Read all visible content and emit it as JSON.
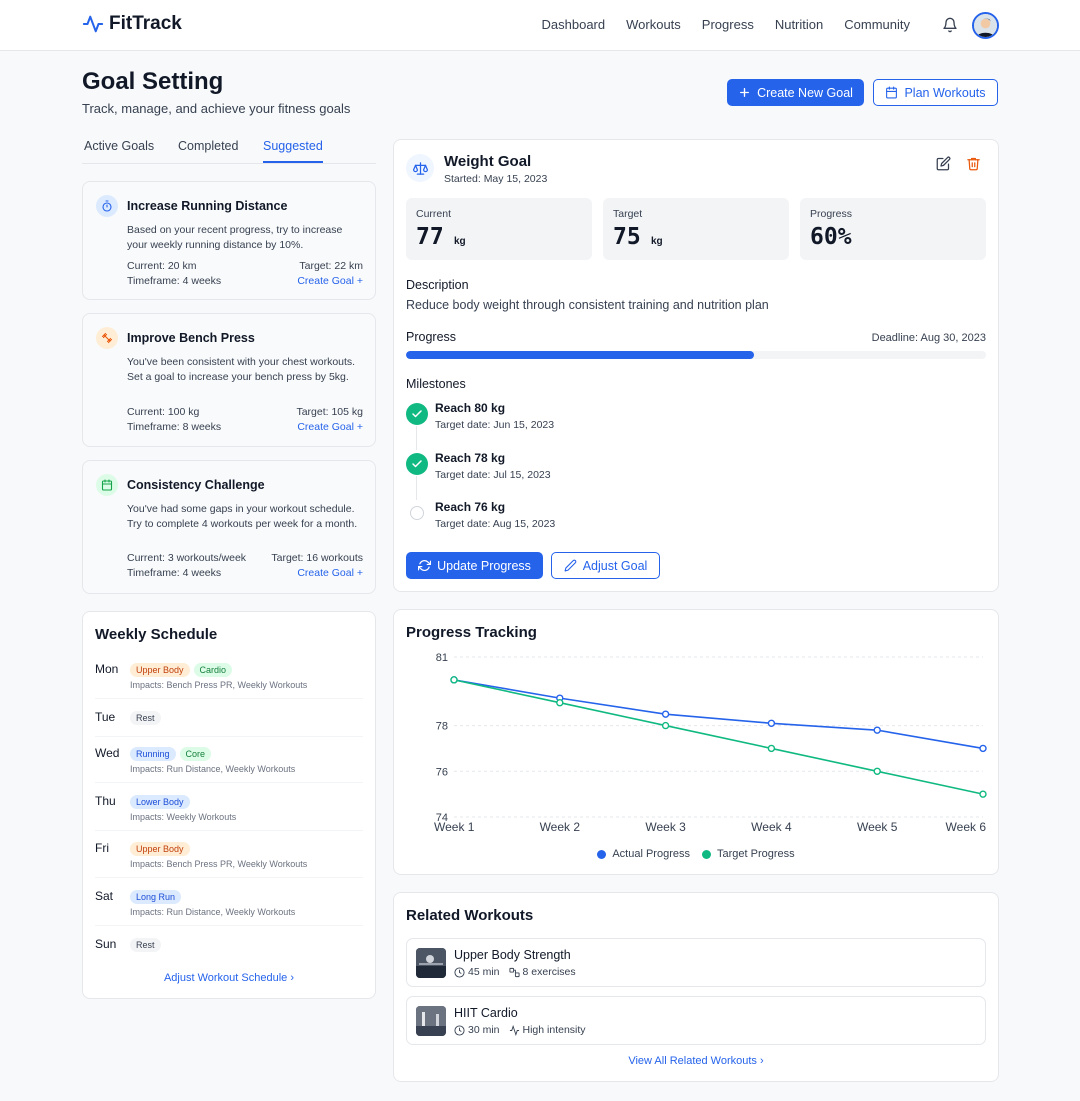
{
  "app": {
    "brand": "FitTrack",
    "nav": [
      "Dashboard",
      "Workouts",
      "Progress",
      "Nutrition",
      "Community"
    ],
    "accent": "#2563eb"
  },
  "header": {
    "title": "Goal Setting",
    "subtitle": "Track, manage, and achieve your fitness goals",
    "create_label": "Create New Goal",
    "plan_label": "Plan Workouts"
  },
  "tabs": [
    {
      "label": "Active Goals",
      "active": false
    },
    {
      "label": "Completed",
      "active": false
    },
    {
      "label": "Suggested",
      "active": true
    }
  ],
  "suggestions": [
    {
      "icon": "stopwatch-icon",
      "title": "Increase Running Distance",
      "description": "Based on your recent progress, try to increase your weekly running distance by 10%.",
      "current": "Current: 20 km",
      "target": "Target: 22 km",
      "timeframe": "Timeframe: 4 weeks",
      "link": "Create Goal"
    },
    {
      "icon": "dumbbell-icon",
      "title": "Improve Bench Press",
      "description": "You've been consistent with your chest workouts. Set a goal to increase your bench press by 5kg.",
      "current": "Current: 100 kg",
      "target": "Target: 105 kg",
      "timeframe": "Timeframe: 8 weeks",
      "link": "Create Goal"
    },
    {
      "icon": "calendar-icon",
      "title": "Consistency Challenge",
      "description": "You've had some gaps in your workout schedule. Try to complete 4 workouts per week for a month.",
      "current": "Current: 3 workouts/week",
      "target": "Target: 16 workouts",
      "timeframe": "Timeframe: 4 weeks",
      "link": "Create Goal"
    }
  ],
  "schedule": {
    "title": "Weekly Schedule",
    "days": [
      {
        "day": "Mon",
        "tags": [
          {
            "t": "Upper Body",
            "c": "orange"
          },
          {
            "t": "Cardio",
            "c": "green"
          }
        ],
        "impact": "Impacts: Bench Press PR, Weekly Workouts"
      },
      {
        "day": "Tue",
        "tags": [
          {
            "t": "Rest",
            "c": "gray"
          }
        ],
        "impact": ""
      },
      {
        "day": "Wed",
        "tags": [
          {
            "t": "Running",
            "c": "blue"
          },
          {
            "t": "Core",
            "c": "green"
          }
        ],
        "impact": "Impacts: Run Distance, Weekly Workouts"
      },
      {
        "day": "Thu",
        "tags": [
          {
            "t": "Lower Body",
            "c": "blue"
          }
        ],
        "impact": "Impacts: Weekly Workouts"
      },
      {
        "day": "Fri",
        "tags": [
          {
            "t": "Upper Body",
            "c": "orange"
          }
        ],
        "impact": "Impacts: Bench Press PR, Weekly Workouts"
      },
      {
        "day": "Sat",
        "tags": [
          {
            "t": "Long Run",
            "c": "blue"
          }
        ],
        "impact": "Impacts: Run Distance, Weekly Workouts"
      },
      {
        "day": "Sun",
        "tags": [
          {
            "t": "Rest",
            "c": "gray"
          }
        ],
        "impact": ""
      }
    ],
    "link": "Adjust Workout Schedule"
  },
  "goal": {
    "title": "Weight Goal",
    "started": "Started: May 15, 2023",
    "current_label": "Current",
    "current_value": "77",
    "target_label": "Target",
    "target_value": "75",
    "unit": "kg",
    "progress_label": "Progress",
    "progress_value": "60%",
    "progress_fraction": 0.6,
    "description_heading": "Description",
    "description": "Reduce body weight through consistent training and nutrition plan",
    "progress_heading": "Progress",
    "deadline": "Deadline: Aug 30, 2023",
    "milestones_heading": "Milestones",
    "milestones": [
      {
        "title": "Reach 80 kg",
        "date": "Target date: Jun 15, 2023",
        "done": true
      },
      {
        "title": "Reach 78 kg",
        "date": "Target date: Jul 15, 2023",
        "done": true
      },
      {
        "title": "Reach 76 kg",
        "date": "Target date: Aug 15, 2023",
        "done": false
      }
    ],
    "update_label": "Update Progress",
    "adjust_label": "Adjust Goal"
  },
  "chart_data": {
    "type": "line",
    "title": "Progress Tracking",
    "x": [
      "Week 1",
      "Week 2",
      "Week 3",
      "Week 4",
      "Week 5",
      "Week 6"
    ],
    "series": [
      {
        "name": "Actual Progress",
        "color": "#2563eb",
        "values": [
          80,
          79.2,
          78.5,
          78.1,
          77.8,
          77
        ]
      },
      {
        "name": "Target Progress",
        "color": "#10b981",
        "values": [
          80,
          79,
          78,
          77,
          76,
          75
        ]
      }
    ],
    "yticks": [
      74,
      76,
      78,
      81
    ],
    "ylim": [
      74,
      81
    ],
    "grid": true,
    "legend": "bottom"
  },
  "related": {
    "title": "Related Workouts",
    "items": [
      {
        "name": "Upper Body Strength",
        "duration": "45 min",
        "meta_icon": "exercises-icon",
        "meta": "8 exercises"
      },
      {
        "name": "HIIT Cardio",
        "duration": "30 min",
        "meta_icon": "activity-icon",
        "meta": "High intensity"
      }
    ],
    "link": "View All Related Workouts"
  }
}
